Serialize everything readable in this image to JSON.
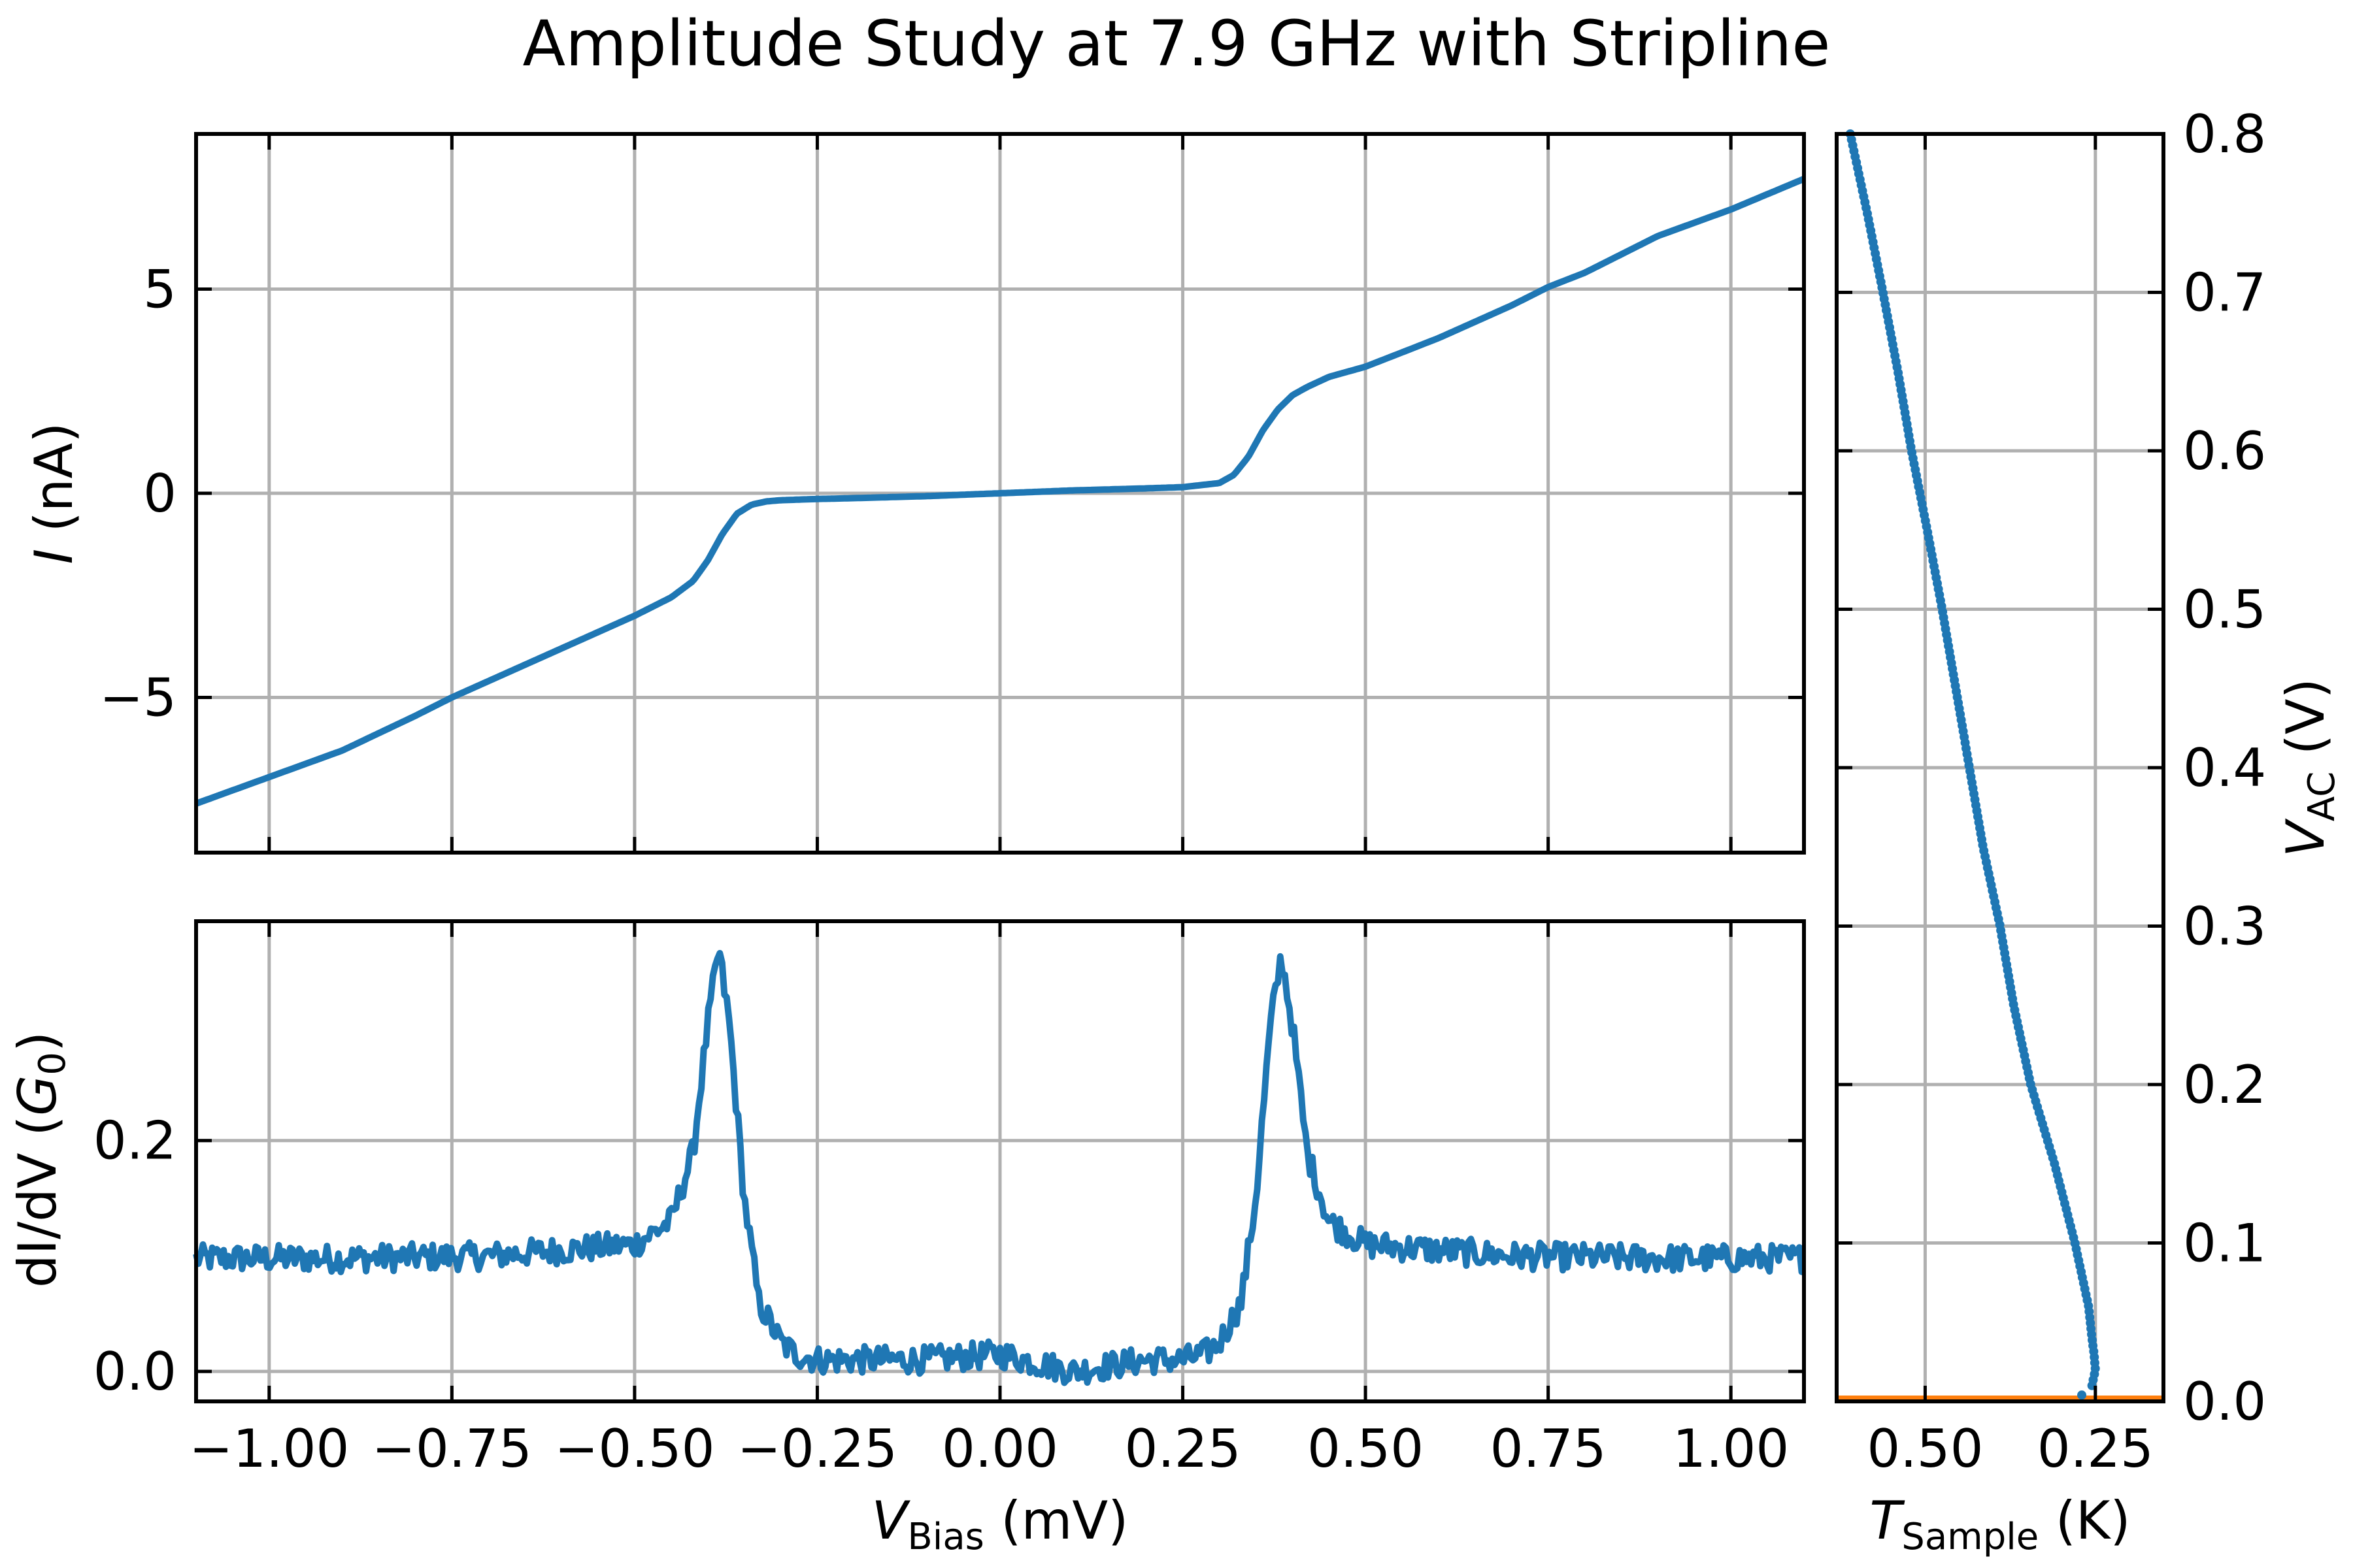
{
  "figure": {
    "title": "Amplitude Study at 7.9 GHz with Stripline"
  },
  "chart_data": [
    {
      "id": "iv",
      "type": "line",
      "ylabel_symbol": "I",
      "ylabel_unit": "(nA)",
      "xlim": [
        -1.1,
        1.1
      ],
      "ylim": [
        -8.8,
        8.8
      ],
      "yticks": [
        -5,
        0,
        5
      ],
      "ytick_labels": [
        "−5",
        "0",
        "5"
      ],
      "xticks": [
        -1.0,
        -0.75,
        -0.5,
        -0.25,
        0.0,
        0.25,
        0.5,
        0.75,
        1.0
      ],
      "grid": true,
      "series": [
        {
          "color": "#1f77b4",
          "x": [
            -1.1,
            -1.0,
            -0.9,
            -0.8,
            -0.75,
            -0.7,
            -0.6,
            -0.5,
            -0.45,
            -0.42,
            -0.4,
            -0.38,
            -0.36,
            -0.34,
            -0.32,
            -0.3,
            -0.25,
            -0.2,
            -0.1,
            0.0,
            0.1,
            0.2,
            0.25,
            0.3,
            0.32,
            0.34,
            0.36,
            0.38,
            0.4,
            0.42,
            0.45,
            0.5,
            0.6,
            0.7,
            0.75,
            0.8,
            0.9,
            1.0,
            1.1
          ],
          "y": [
            -7.6,
            -6.95,
            -6.3,
            -5.45,
            -5.0,
            -4.6,
            -3.8,
            -3.0,
            -2.55,
            -2.15,
            -1.65,
            -1.0,
            -0.5,
            -0.28,
            -0.2,
            -0.17,
            -0.14,
            -0.12,
            -0.07,
            0.0,
            0.07,
            0.12,
            0.15,
            0.25,
            0.45,
            0.9,
            1.55,
            2.05,
            2.4,
            2.6,
            2.85,
            3.1,
            3.8,
            4.6,
            5.05,
            5.4,
            6.3,
            6.95,
            7.7
          ]
        }
      ]
    },
    {
      "id": "didv",
      "type": "line",
      "ylabel_text": "dI/dV",
      "ylabel_symbol": "G",
      "ylabel_subscript": "0",
      "xlabel_symbol": "V",
      "xlabel_subscript": "Bias",
      "xlabel_unit": "(mV)",
      "xlim": [
        -1.1,
        1.1
      ],
      "ylim": [
        -0.026,
        0.39
      ],
      "yticks": [
        0.0,
        0.2
      ],
      "ytick_labels": [
        "0.0",
        "0.2"
      ],
      "xticks": [
        -1.0,
        -0.75,
        -0.5,
        -0.25,
        0.0,
        0.25,
        0.5,
        0.75,
        1.0
      ],
      "xtick_labels": [
        "−1.00",
        "−0.75",
        "−0.50",
        "−0.25",
        "0.00",
        "0.25",
        "0.50",
        "0.75",
        "1.00"
      ],
      "grid": true,
      "series": [
        {
          "color": "#1f77b4",
          "x": [
            -1.1,
            -0.9,
            -0.7,
            -0.5,
            -0.45,
            -0.42,
            -0.4,
            -0.385,
            -0.37,
            -0.35,
            -0.33,
            -0.3,
            -0.28,
            -0.25,
            -0.2,
            -0.1,
            0.0,
            0.1,
            0.2,
            0.25,
            0.28,
            0.3,
            0.33,
            0.35,
            0.37,
            0.385,
            0.4,
            0.42,
            0.45,
            0.5,
            0.7,
            0.9,
            1.1
          ],
          "y": [
            0.098,
            0.098,
            0.1,
            0.11,
            0.13,
            0.19,
            0.3,
            0.365,
            0.3,
            0.15,
            0.06,
            0.025,
            0.015,
            0.01,
            0.01,
            0.01,
            0.015,
            0.0,
            0.01,
            0.01,
            0.015,
            0.025,
            0.06,
            0.15,
            0.3,
            0.36,
            0.3,
            0.19,
            0.13,
            0.11,
            0.1,
            0.098,
            0.098
          ],
          "noise_amplitude": 0.012
        }
      ]
    },
    {
      "id": "temperature",
      "type": "scatter",
      "xlabel_symbol": "T",
      "xlabel_subscript": "Sample",
      "xlabel_unit": "(K)",
      "ylabel_symbol": "V",
      "ylabel_subscript": "AC",
      "ylabel_unit": "(V)",
      "xlim": [
        0.63,
        0.15
      ],
      "ylim": [
        0.0,
        0.8
      ],
      "xticks": [
        0.5,
        0.25
      ],
      "xtick_labels": [
        "0.50",
        "0.25"
      ],
      "yticks": [
        0.0,
        0.1,
        0.2,
        0.3,
        0.4,
        0.5,
        0.6,
        0.7,
        0.8
      ],
      "ytick_labels": [
        "0.0",
        "0.1",
        "0.2",
        "0.3",
        "0.4",
        "0.5",
        "0.6",
        "0.7",
        "0.8"
      ],
      "grid": true,
      "series": [
        {
          "color": "#1f77b4",
          "v": [
            0.8,
            0.75,
            0.7,
            0.65,
            0.6,
            0.55,
            0.5,
            0.45,
            0.4,
            0.35,
            0.3,
            0.25,
            0.2,
            0.15,
            0.1,
            0.08,
            0.06,
            0.04,
            0.03,
            0.02,
            0.01
          ],
          "t": [
            0.61,
            0.585,
            0.562,
            0.54,
            0.52,
            0.497,
            0.475,
            0.455,
            0.435,
            0.415,
            0.39,
            0.37,
            0.345,
            0.31,
            0.28,
            0.27,
            0.26,
            0.255,
            0.252,
            0.25,
            0.255
          ]
        },
        {
          "color": "#ff7f0e",
          "v": [
            0.0,
            0.0
          ],
          "t": [
            0.63,
            0.15
          ]
        }
      ]
    }
  ]
}
